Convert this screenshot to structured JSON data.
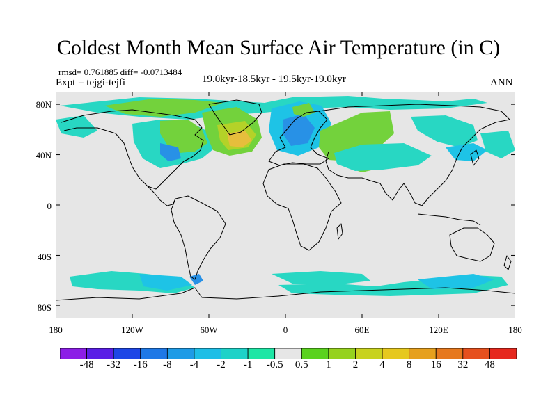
{
  "title": "Coldest Month Mean Surface Air Temperature (in C)",
  "stats": "rmsd= 0.761885 diff= -0.0713484",
  "expt": "Expt = tejgi-tejfi",
  "period": "19.0kyr-18.5kyr - 19.5kyr-19.0kyr",
  "season": "ANN",
  "lat_ticks": [
    {
      "value": 80,
      "label": "80N"
    },
    {
      "value": 40,
      "label": "40N"
    },
    {
      "value": 0,
      "label": "0"
    },
    {
      "value": -40,
      "label": "40S"
    },
    {
      "value": -80,
      "label": "80S"
    }
  ],
  "lon_ticks": [
    {
      "value": -180,
      "label": "180"
    },
    {
      "value": -120,
      "label": "120W"
    },
    {
      "value": -60,
      "label": "60W"
    },
    {
      "value": 0,
      "label": "0"
    },
    {
      "value": 60,
      "label": "60E"
    },
    {
      "value": 120,
      "label": "120E"
    },
    {
      "value": 180,
      "label": "180"
    }
  ],
  "colorbar": {
    "colors": [
      "#8c1ee6",
      "#5a1ee6",
      "#1e46e6",
      "#1e78e6",
      "#1e9be6",
      "#1ebee6",
      "#1ed2c8",
      "#1ee6a5",
      "#e6e6e6",
      "#5ad21e",
      "#96d21e",
      "#c8d21e",
      "#e6c81e",
      "#e6a01e",
      "#e6781e",
      "#e6501e",
      "#e6281e"
    ],
    "labels": [
      "-48",
      "-32",
      "-16",
      "-8",
      "-4",
      "-2",
      "-1",
      "-0.5",
      "0.5",
      "1",
      "2",
      "4",
      "8",
      "16",
      "32",
      "48"
    ]
  },
  "colors": {
    "background": "#e6e6e6",
    "coast": "#000000",
    "ocean_anom": "#28d7c3",
    "cool_anom": "#1ec3e6",
    "cold_anom": "#2891e6",
    "warm_anom": "#73d23c",
    "warmer_anom": "#b4d228",
    "hot_anom": "#e6be3c"
  }
}
